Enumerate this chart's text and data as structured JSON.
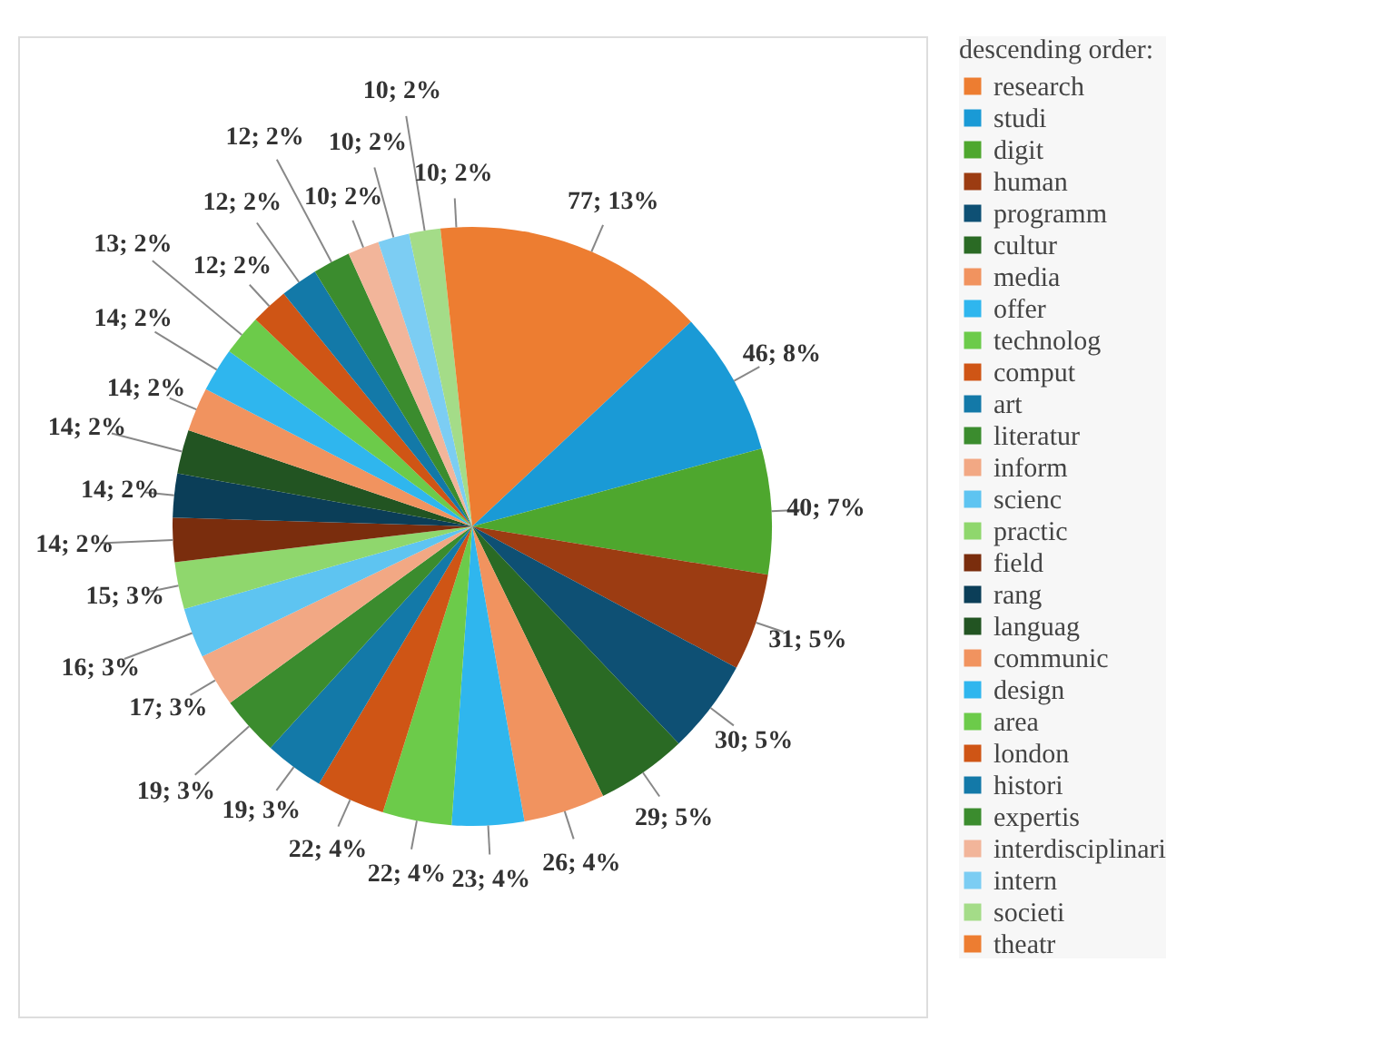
{
  "chart_data": {
    "type": "pie",
    "legend_title": "descending order:",
    "legend": "right",
    "categories": [
      "research",
      "studi",
      "digit",
      "human",
      "programm",
      "cultur",
      "media",
      "offer",
      "technolog",
      "comput",
      "art",
      "literatur",
      "inform",
      "scienc",
      "practic",
      "field",
      "rang",
      "languag",
      "communic",
      "design",
      "area",
      "london",
      "histori",
      "expertis",
      "interdisciplinari",
      "intern",
      "societi",
      "theatr"
    ],
    "values": [
      77,
      46,
      40,
      31,
      30,
      29,
      26,
      23,
      22,
      22,
      19,
      19,
      17,
      16,
      15,
      14,
      14,
      14,
      14,
      14,
      13,
      12,
      12,
      12,
      10,
      10,
      10,
      10
    ],
    "value_labels": [
      "77; 13%",
      "46; 8%",
      "40; 7%",
      "31; 5%",
      "30; 5%",
      "29; 5%",
      "26; 4%",
      "23; 4%",
      "22; 4%",
      "22; 4%",
      "19; 3%",
      "19; 3%",
      "17; 3%",
      "16; 3%",
      "15; 3%",
      "14; 2%",
      "14; 2%",
      "14; 2%",
      "14; 2%",
      "14; 2%",
      "13; 2%",
      "12; 2%",
      "12; 2%",
      "12; 2%",
      "10; 2%",
      "10; 2%",
      "10; 2%",
      "10; 2%"
    ],
    "colors": [
      "#ed7d31",
      "#1a9ad6",
      "#4ea72e",
      "#9c3c12",
      "#0e5074",
      "#2a6a24",
      "#f1935f",
      "#2fb6ee",
      "#6ccb4a",
      "#cf5515",
      "#1379a8",
      "#3b8c2e",
      "#f2a884",
      "#5ec4f1",
      "#8fd76d",
      "#7a2d0d",
      "#0b3e58",
      "#225422",
      "#f1935f",
      "#2fb6ee",
      "#6ccb4a",
      "#cf5515",
      "#1379a8",
      "#3b8c2e",
      "#f2b59a",
      "#7ccdf3",
      "#a4dc88",
      "#ed7d31"
    ]
  }
}
